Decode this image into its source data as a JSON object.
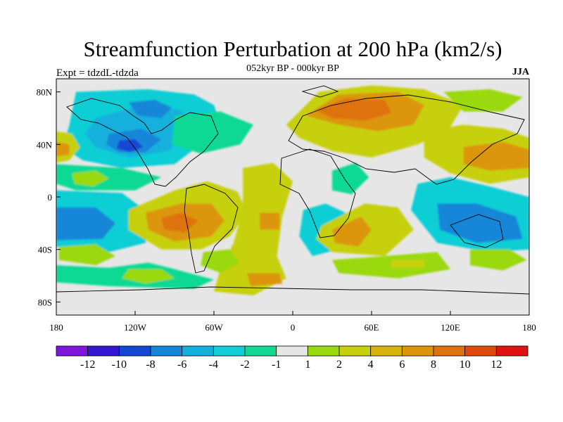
{
  "title": "Streamfunction Perturbation at 200 hPa (km2/s)",
  "subtitle": "052kyr BP - 000kyr BP",
  "left_label": "Expt = tdzdL-tdzda",
  "right_label": "JJA",
  "lat_ticks": [
    {
      "label": "80N",
      "value": 80
    },
    {
      "label": "40N",
      "value": 40
    },
    {
      "label": "0",
      "value": 0
    },
    {
      "label": "40S",
      "value": -40
    },
    {
      "label": "80S",
      "value": -80
    }
  ],
  "lon_ticks": [
    {
      "label": "180",
      "value": -180
    },
    {
      "label": "120W",
      "value": -120
    },
    {
      "label": "60W",
      "value": -60
    },
    {
      "label": "0",
      "value": 0
    },
    {
      "label": "60E",
      "value": 60
    },
    {
      "label": "120E",
      "value": 120
    },
    {
      "label": "180",
      "value": 180
    }
  ],
  "colorbar": {
    "colors": [
      "#7d16d8",
      "#3417d4",
      "#1546d3",
      "#1386d9",
      "#12b0dc",
      "#10ced5",
      "#11d994",
      "#e6e6e6",
      "#9ad90c",
      "#c7d00b",
      "#d8b40b",
      "#dc960c",
      "#de730d",
      "#df4b0f",
      "#e01212"
    ],
    "labels": [
      "-12",
      "-10",
      "-8",
      "-6",
      "-4",
      "-2",
      "-1",
      "1",
      "2",
      "4",
      "6",
      "8",
      "10",
      "12"
    ]
  },
  "regions": [
    {
      "name": "north-pacific-low",
      "color": "#10ced5",
      "poly": [
        [
          -165,
          80
        ],
        [
          -110,
          82
        ],
        [
          -75,
          78
        ],
        [
          -60,
          70
        ],
        [
          -55,
          55
        ],
        [
          -70,
          40
        ],
        [
          -90,
          25
        ],
        [
          -130,
          22
        ],
        [
          -160,
          28
        ],
        [
          -175,
          38
        ],
        [
          -170,
          55
        ]
      ]
    },
    {
      "name": "north-pacific-low-inner",
      "color": "#12b0dc",
      "poly": [
        [
          -150,
          60
        ],
        [
          -115,
          70
        ],
        [
          -85,
          66
        ],
        [
          -75,
          52
        ],
        [
          -95,
          35
        ],
        [
          -125,
          30
        ],
        [
          -150,
          38
        ],
        [
          -158,
          48
        ]
      ]
    },
    {
      "name": "north-pacific-low-core",
      "color": "#1386d9",
      "poly": [
        [
          -140,
          48
        ],
        [
          -115,
          52
        ],
        [
          -100,
          44
        ],
        [
          -112,
          34
        ],
        [
          -132,
          34
        ],
        [
          -142,
          40
        ]
      ]
    },
    {
      "name": "north-pacific-low-center",
      "color": "#1546d3",
      "poly": [
        [
          -132,
          43
        ],
        [
          -120,
          44
        ],
        [
          -114,
          38
        ],
        [
          -124,
          34
        ],
        [
          -134,
          37
        ]
      ]
    },
    {
      "name": "arctic-canada-low",
      "color": "#1386d9",
      "poly": [
        [
          -125,
          72
        ],
        [
          -105,
          74
        ],
        [
          -92,
          68
        ],
        [
          -100,
          60
        ],
        [
          -118,
          62
        ]
      ]
    },
    {
      "name": "atlantic-north-low",
      "color": "#11d994",
      "poly": [
        [
          -90,
          62
        ],
        [
          -55,
          65
        ],
        [
          -30,
          55
        ],
        [
          -40,
          40
        ],
        [
          -70,
          33
        ],
        [
          -92,
          40
        ]
      ]
    },
    {
      "name": "dateline-high-west",
      "color": "#c7d00b",
      "poly": [
        [
          -180,
          50
        ],
        [
          -168,
          48
        ],
        [
          -162,
          38
        ],
        [
          -170,
          28
        ],
        [
          -180,
          26
        ]
      ]
    },
    {
      "name": "dateline-high-west-core",
      "color": "#dc960c",
      "poly": [
        [
          -180,
          42
        ],
        [
          -170,
          40
        ],
        [
          -170,
          32
        ],
        [
          -180,
          31
        ]
      ]
    },
    {
      "name": "subtropic-pac-low",
      "color": "#11d994",
      "poly": [
        [
          -180,
          25
        ],
        [
          -130,
          22
        ],
        [
          -100,
          15
        ],
        [
          -120,
          5
        ],
        [
          -165,
          5
        ],
        [
          -180,
          10
        ]
      ]
    },
    {
      "name": "hawaii-high",
      "color": "#9ad90c",
      "poly": [
        [
          -168,
          18
        ],
        [
          -150,
          20
        ],
        [
          -140,
          14
        ],
        [
          -152,
          8
        ],
        [
          -166,
          10
        ]
      ]
    },
    {
      "name": "south-pacific-low",
      "color": "#10ced5",
      "poly": [
        [
          -180,
          5
        ],
        [
          -130,
          3
        ],
        [
          -110,
          -12
        ],
        [
          -112,
          -35
        ],
        [
          -140,
          -42
        ],
        [
          -180,
          -38
        ]
      ]
    },
    {
      "name": "south-pacific-low-inner",
      "color": "#1386d9",
      "poly": [
        [
          -180,
          -8
        ],
        [
          -150,
          -8
        ],
        [
          -135,
          -20
        ],
        [
          -145,
          -32
        ],
        [
          -180,
          -33
        ]
      ]
    },
    {
      "name": "south-pacific-ring",
      "color": "#9ad90c",
      "poly": [
        [
          -178,
          -38
        ],
        [
          -150,
          -36
        ],
        [
          -135,
          -45
        ],
        [
          -150,
          -52
        ],
        [
          -178,
          -48
        ]
      ]
    },
    {
      "name": "southern-ocean-low",
      "color": "#11d994",
      "poly": [
        [
          -180,
          -52
        ],
        [
          -140,
          -54
        ],
        [
          -110,
          -50
        ],
        [
          -90,
          -55
        ],
        [
          -60,
          -63
        ],
        [
          -75,
          -70
        ],
        [
          -140,
          -68
        ],
        [
          -180,
          -65
        ]
      ]
    },
    {
      "name": "southern-ocean-high",
      "color": "#9ad90c",
      "poly": [
        [
          -125,
          -55
        ],
        [
          -100,
          -55
        ],
        [
          -90,
          -62
        ],
        [
          -112,
          -66
        ],
        [
          -130,
          -62
        ]
      ]
    },
    {
      "name": "sam-high-outer",
      "color": "#c7d00b",
      "poly": [
        [
          -125,
          -10
        ],
        [
          -90,
          5
        ],
        [
          -65,
          12
        ],
        [
          -42,
          4
        ],
        [
          -35,
          -12
        ],
        [
          -48,
          -30
        ],
        [
          -70,
          -40
        ],
        [
          -100,
          -40
        ],
        [
          -125,
          -25
        ]
      ]
    },
    {
      "name": "sam-high-mid",
      "color": "#dc960c",
      "poly": [
        [
          -112,
          -12
        ],
        [
          -85,
          -5
        ],
        [
          -62,
          -5
        ],
        [
          -52,
          -18
        ],
        [
          -62,
          -30
        ],
        [
          -90,
          -34
        ],
        [
          -110,
          -25
        ]
      ]
    },
    {
      "name": "sam-high-core",
      "color": "#de730d",
      "poly": [
        [
          -100,
          -16
        ],
        [
          -85,
          -12
        ],
        [
          -72,
          -18
        ],
        [
          -82,
          -27
        ],
        [
          -98,
          -25
        ]
      ]
    },
    {
      "name": "atlantic-high-band",
      "color": "#c7d00b",
      "poly": [
        [
          -38,
          22
        ],
        [
          -15,
          26
        ],
        [
          0,
          12
        ],
        [
          -8,
          -15
        ],
        [
          -12,
          -45
        ],
        [
          -5,
          -62
        ],
        [
          -30,
          -75
        ],
        [
          -60,
          -72
        ],
        [
          -55,
          -55
        ],
        [
          -45,
          -35
        ],
        [
          -38,
          -10
        ]
      ]
    },
    {
      "name": "atlantic-high-core",
      "color": "#dc960c",
      "poly": [
        [
          -25,
          -12
        ],
        [
          -10,
          -12
        ],
        [
          -10,
          -25
        ],
        [
          -25,
          -25
        ]
      ]
    },
    {
      "name": "atlantic-high-south",
      "color": "#dc960c",
      "poly": [
        [
          -35,
          -58
        ],
        [
          -10,
          -58
        ],
        [
          -8,
          -66
        ],
        [
          -32,
          -68
        ]
      ]
    },
    {
      "name": "south-atlantic-green",
      "color": "#9ad90c",
      "poly": [
        [
          -68,
          -42
        ],
        [
          -48,
          -40
        ],
        [
          -40,
          -50
        ],
        [
          -55,
          -58
        ],
        [
          -70,
          -52
        ]
      ]
    },
    {
      "name": "africa-low",
      "color": "#10ced5",
      "poly": [
        [
          8,
          -10
        ],
        [
          25,
          -5
        ],
        [
          40,
          -12
        ],
        [
          35,
          -40
        ],
        [
          15,
          -45
        ],
        [
          5,
          -30
        ]
      ]
    },
    {
      "name": "indian-high-outer",
      "color": "#c7d00b",
      "poly": [
        [
          22,
          -22
        ],
        [
          55,
          -5
        ],
        [
          80,
          -8
        ],
        [
          92,
          -25
        ],
        [
          70,
          -45
        ],
        [
          30,
          -42
        ],
        [
          18,
          -32
        ]
      ]
    },
    {
      "name": "indian-high-core",
      "color": "#dc960c",
      "poly": [
        [
          30,
          -25
        ],
        [
          52,
          -15
        ],
        [
          60,
          -25
        ],
        [
          50,
          -38
        ],
        [
          32,
          -35
        ]
      ]
    },
    {
      "name": "southern-indian-green",
      "color": "#9ad90c",
      "poly": [
        [
          30,
          -48
        ],
        [
          70,
          -45
        ],
        [
          110,
          -42
        ],
        [
          120,
          -55
        ],
        [
          80,
          -62
        ],
        [
          35,
          -58
        ]
      ]
    },
    {
      "name": "south-indian-core",
      "color": "#c7d00b",
      "poly": [
        [
          75,
          -48
        ],
        [
          100,
          -48
        ],
        [
          100,
          -54
        ],
        [
          75,
          -54
        ]
      ]
    },
    {
      "name": "arabia-low",
      "color": "#11d994",
      "poly": [
        [
          30,
          20
        ],
        [
          48,
          26
        ],
        [
          58,
          15
        ],
        [
          45,
          2
        ],
        [
          30,
          5
        ]
      ]
    },
    {
      "name": "eurasia-high-outer",
      "color": "#c7d00b",
      "poly": [
        [
          -5,
          55
        ],
        [
          20,
          80
        ],
        [
          60,
          85
        ],
        [
          100,
          82
        ],
        [
          130,
          70
        ],
        [
          118,
          50
        ],
        [
          95,
          40
        ],
        [
          60,
          30
        ],
        [
          30,
          35
        ],
        [
          5,
          45
        ]
      ]
    },
    {
      "name": "eurasia-high-mid",
      "color": "#dc960c",
      "poly": [
        [
          10,
          62
        ],
        [
          35,
          78
        ],
        [
          80,
          80
        ],
        [
          100,
          70
        ],
        [
          92,
          55
        ],
        [
          65,
          50
        ],
        [
          35,
          55
        ]
      ]
    },
    {
      "name": "eurasia-high-core",
      "color": "#de730d",
      "poly": [
        [
          18,
          66
        ],
        [
          40,
          75
        ],
        [
          70,
          74
        ],
        [
          75,
          64
        ],
        [
          55,
          58
        ],
        [
          30,
          60
        ]
      ]
    },
    {
      "name": "arctic-eurasia-green",
      "color": "#9ad90c",
      "poly": [
        [
          115,
          80
        ],
        [
          150,
          82
        ],
        [
          175,
          76
        ],
        [
          160,
          65
        ],
        [
          130,
          65
        ]
      ]
    },
    {
      "name": "west-pacific-high",
      "color": "#c7d00b",
      "poly": [
        [
          100,
          50
        ],
        [
          130,
          55
        ],
        [
          160,
          52
        ],
        [
          180,
          45
        ],
        [
          180,
          15
        ],
        [
          150,
          10
        ],
        [
          120,
          18
        ],
        [
          100,
          30
        ]
      ]
    },
    {
      "name": "west-pacific-core",
      "color": "#dc960c",
      "poly": [
        [
          130,
          38
        ],
        [
          160,
          42
        ],
        [
          180,
          36
        ],
        [
          180,
          22
        ],
        [
          150,
          20
        ],
        [
          130,
          25
        ]
      ]
    },
    {
      "name": "maritime-low",
      "color": "#10ced5",
      "poly": [
        [
          95,
          10
        ],
        [
          120,
          15
        ],
        [
          150,
          8
        ],
        [
          180,
          0
        ],
        [
          180,
          -40
        ],
        [
          150,
          -42
        ],
        [
          110,
          -35
        ],
        [
          90,
          -10
        ]
      ]
    },
    {
      "name": "maritime-low-inner",
      "color": "#1386d9",
      "poly": [
        [
          110,
          -5
        ],
        [
          140,
          -5
        ],
        [
          170,
          -15
        ],
        [
          175,
          -32
        ],
        [
          140,
          -35
        ],
        [
          112,
          -25
        ]
      ]
    },
    {
      "name": "australia-south-green",
      "color": "#9ad90c",
      "poly": [
        [
          135,
          -40
        ],
        [
          165,
          -40
        ],
        [
          178,
          -48
        ],
        [
          160,
          -56
        ],
        [
          135,
          -52
        ]
      ]
    }
  ]
}
